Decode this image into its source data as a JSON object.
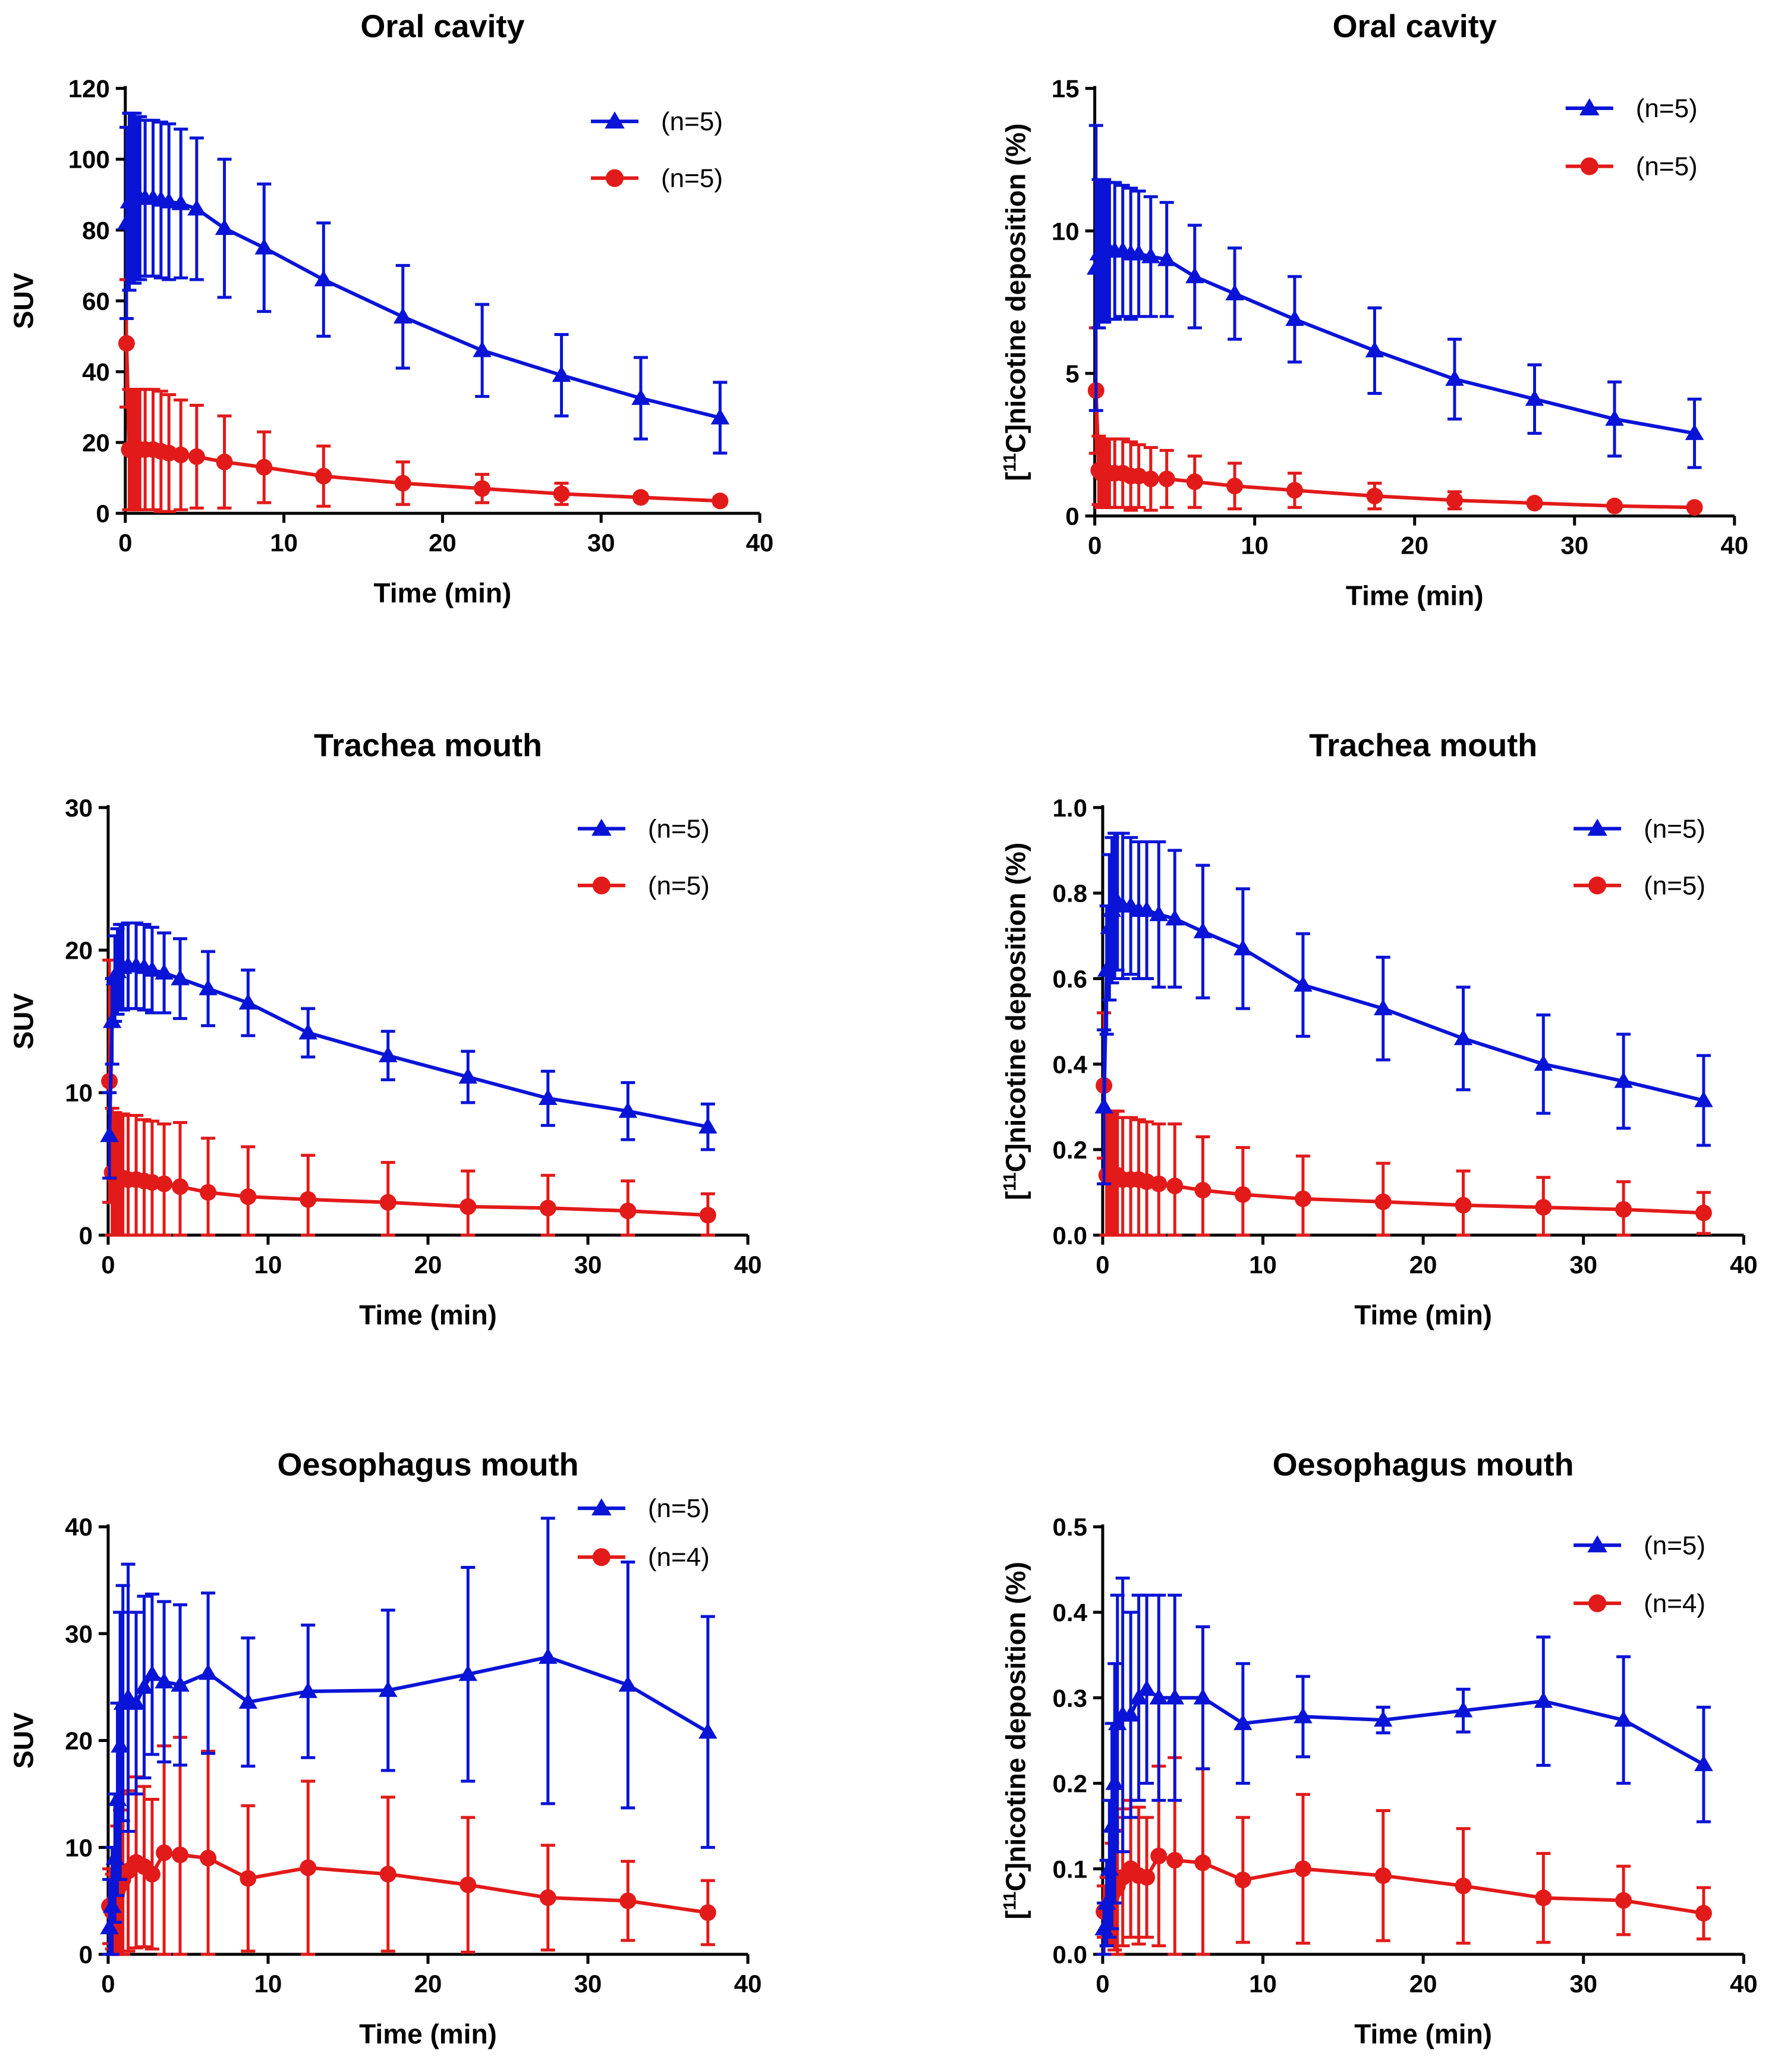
{
  "colors": {
    "blue": "#0a14d6",
    "red": "#e21a1a",
    "axis": "#000000"
  },
  "chart_data": [
    {
      "type": "line",
      "title": "Oral cavity",
      "xlabel": "Time (min)",
      "ylabel": "SUV",
      "ylabel_parts": [
        "",
        "",
        "SUV"
      ],
      "xlim": [
        0,
        40
      ],
      "ylim": [
        0,
        120
      ],
      "x_ticks": [
        0,
        10,
        20,
        30,
        40
      ],
      "y_ticks": [
        0,
        20,
        40,
        60,
        80,
        100,
        120
      ],
      "y_tick_labels": [
        "0",
        "20",
        "40",
        "60",
        "80",
        "100",
        "120"
      ],
      "legend_position": "top-right",
      "x": [
        0.08,
        0.25,
        0.42,
        0.58,
        0.75,
        0.92,
        1.25,
        1.75,
        2.25,
        2.75,
        3.5,
        4.5,
        6.25,
        8.75,
        12.5,
        17.5,
        22.5,
        27.5,
        32.5,
        37.5
      ],
      "series": [
        {
          "name": "(n=5)",
          "marker": "triangle",
          "color": "#0a14d6",
          "values": [
            82,
            88,
            89,
            89,
            89,
            89,
            89,
            89,
            88.5,
            88,
            87.5,
            86,
            80.5,
            75,
            66,
            55.5,
            46,
            39,
            32.5,
            27
          ],
          "errors": [
            27,
            25,
            24,
            24,
            23,
            23,
            22,
            22,
            22,
            22,
            21,
            20,
            19.5,
            18,
            16,
            14.5,
            13,
            11.5,
            11.5,
            10
          ]
        },
        {
          "name": "(n=5)",
          "marker": "circle",
          "color": "#e21a1a",
          "values": [
            48,
            18,
            18,
            18,
            18,
            18,
            18,
            18,
            17.5,
            17,
            16.5,
            16,
            14.5,
            13,
            10.5,
            8.5,
            7,
            5.5,
            4.5,
            3.5
          ],
          "errors": [
            18,
            17,
            17,
            17,
            17,
            17,
            17,
            17,
            17,
            16.5,
            15.5,
            14.5,
            13,
            10,
            8.5,
            6,
            4,
            3,
            1,
            1
          ]
        }
      ]
    },
    {
      "type": "line",
      "title": "Oral cavity",
      "xlabel": "Time (min)",
      "ylabel": "[11C]nicotine deposition (%)",
      "ylabel_parts": [
        "[",
        "11",
        "C]nicotine deposition (%)"
      ],
      "xlim": [
        0,
        40
      ],
      "ylim": [
        0,
        15
      ],
      "x_ticks": [
        0,
        10,
        20,
        30,
        40
      ],
      "y_ticks": [
        0,
        5,
        10,
        15
      ],
      "y_tick_labels": [
        "0",
        "5",
        "10",
        "15"
      ],
      "legend_position": "top-right",
      "x": [
        0.08,
        0.25,
        0.42,
        0.58,
        0.75,
        0.92,
        1.25,
        1.75,
        2.25,
        2.75,
        3.5,
        4.5,
        6.25,
        8.75,
        12.5,
        17.5,
        22.5,
        27.5,
        32.5,
        37.5
      ],
      "series": [
        {
          "name": "(n=5)",
          "marker": "triangle",
          "color": "#0a14d6",
          "values": [
            8.7,
            9.2,
            9.3,
            9.3,
            9.3,
            9.3,
            9.3,
            9.3,
            9.2,
            9.2,
            9.1,
            9,
            8.4,
            7.8,
            6.9,
            5.8,
            4.8,
            4.1,
            3.4,
            2.9
          ],
          "errors": [
            5,
            2.6,
            2.5,
            2.5,
            2.4,
            2.4,
            2.4,
            2.3,
            2.3,
            2.2,
            2.1,
            2,
            1.8,
            1.6,
            1.5,
            1.5,
            1.4,
            1.2,
            1.3,
            1.2
          ]
        },
        {
          "name": "(n=5)",
          "marker": "circle",
          "color": "#e21a1a",
          "values": [
            4.4,
            1.6,
            1.5,
            1.5,
            1.5,
            1.5,
            1.5,
            1.5,
            1.4,
            1.4,
            1.3,
            1.3,
            1.2,
            1.05,
            0.9,
            0.7,
            0.55,
            0.45,
            0.35,
            0.3
          ],
          "errors": [
            2.2,
            1.2,
            1.2,
            1.2,
            1.2,
            1.2,
            1.2,
            1.2,
            1.2,
            1.1,
            1.1,
            1,
            0.9,
            0.8,
            0.6,
            0.45,
            0.3,
            0.1,
            0.1,
            0.1
          ]
        }
      ]
    },
    {
      "type": "line",
      "title": "Trachea mouth",
      "xlabel": "Time (min)",
      "ylabel": "SUV",
      "ylabel_parts": [
        "",
        "",
        "SUV"
      ],
      "xlim": [
        0,
        40
      ],
      "ylim": [
        0,
        30
      ],
      "x_ticks": [
        0,
        10,
        20,
        30,
        40
      ],
      "y_ticks": [
        0,
        10,
        20,
        30
      ],
      "y_tick_labels": [
        "0",
        "10",
        "20",
        "30"
      ],
      "legend_position": "top-right",
      "x": [
        0.08,
        0.25,
        0.42,
        0.58,
        0.75,
        0.92,
        1.25,
        1.75,
        2.25,
        2.75,
        3.5,
        4.5,
        6.25,
        8.75,
        12.5,
        17.5,
        22.5,
        27.5,
        32.5,
        37.5
      ],
      "series": [
        {
          "name": "(n=5)",
          "marker": "triangle",
          "color": "#0a14d6",
          "values": [
            7,
            15,
            18,
            18.5,
            18.8,
            18.8,
            18.9,
            18.9,
            18.8,
            18.6,
            18.4,
            18,
            17.3,
            16.3,
            14.2,
            12.6,
            11.1,
            9.6,
            8.7,
            7.6
          ],
          "errors": [
            3,
            3,
            3,
            3,
            3,
            3,
            3,
            3,
            3,
            3,
            2.8,
            2.8,
            2.6,
            2.3,
            1.7,
            1.7,
            1.8,
            1.9,
            2,
            1.6
          ]
        },
        {
          "name": "(n=5)",
          "marker": "circle",
          "color": "#e21a1a",
          "values": [
            10.8,
            4.4,
            4.1,
            4,
            4,
            4,
            3.9,
            3.9,
            3.8,
            3.7,
            3.6,
            3.4,
            3,
            2.7,
            2.5,
            2.3,
            2,
            1.9,
            1.7,
            1.4
          ],
          "errors": [
            8.5,
            4.5,
            4.5,
            4.5,
            4.5,
            4.5,
            4.5,
            4.5,
            4.3,
            4.3,
            4.2,
            4.5,
            3.8,
            3.5,
            3.1,
            2.8,
            2.5,
            2.3,
            2.1,
            1.5
          ]
        }
      ]
    },
    {
      "type": "line",
      "title": "Trachea mouth",
      "xlabel": "Time (min)",
      "ylabel": "[11C]nicotine deposition (%)",
      "ylabel_parts": [
        "[",
        "11",
        "C]nicotine deposition (%)"
      ],
      "xlim": [
        0,
        40
      ],
      "ylim": [
        0,
        1
      ],
      "x_ticks": [
        0,
        10,
        20,
        30,
        40
      ],
      "y_ticks": [
        0,
        0.2,
        0.4,
        0.6,
        0.8,
        1.0
      ],
      "y_tick_labels": [
        "0.0",
        "0.2",
        "0.4",
        "0.6",
        "0.8",
        "1.0"
      ],
      "legend_position": "top-right",
      "x": [
        0.08,
        0.25,
        0.42,
        0.58,
        0.75,
        0.92,
        1.25,
        1.75,
        2.25,
        2.75,
        3.5,
        4.5,
        6.25,
        8.75,
        12.5,
        17.5,
        22.5,
        27.5,
        32.5,
        37.5
      ],
      "series": [
        {
          "name": "(n=5)",
          "marker": "triangle",
          "color": "#0a14d6",
          "values": [
            0.3,
            0.62,
            0.72,
            0.76,
            0.77,
            0.78,
            0.77,
            0.77,
            0.76,
            0.76,
            0.75,
            0.74,
            0.71,
            0.67,
            0.585,
            0.53,
            0.46,
            0.4,
            0.36,
            0.315
          ],
          "errors": [
            0.18,
            0.15,
            0.17,
            0.17,
            0.17,
            0.16,
            0.17,
            0.16,
            0.16,
            0.16,
            0.17,
            0.16,
            0.155,
            0.14,
            0.12,
            0.12,
            0.12,
            0.115,
            0.11,
            0.105
          ]
        },
        {
          "name": "(n=5)",
          "marker": "circle",
          "color": "#e21a1a",
          "values": [
            0.35,
            0.14,
            0.14,
            0.14,
            0.14,
            0.14,
            0.13,
            0.13,
            0.13,
            0.125,
            0.12,
            0.115,
            0.105,
            0.095,
            0.085,
            0.078,
            0.07,
            0.065,
            0.06,
            0.052
          ],
          "errors": [
            0.17,
            0.15,
            0.15,
            0.15,
            0.15,
            0.15,
            0.145,
            0.145,
            0.14,
            0.14,
            0.14,
            0.145,
            0.125,
            0.11,
            0.1,
            0.09,
            0.08,
            0.07,
            0.065,
            0.048
          ]
        }
      ]
    },
    {
      "type": "line",
      "title": "Oesophagus mouth",
      "xlabel": "Time (min)",
      "ylabel": "SUV",
      "ylabel_parts": [
        "",
        "",
        "SUV"
      ],
      "xlim": [
        0,
        40
      ],
      "ylim": [
        0,
        40
      ],
      "x_ticks": [
        0,
        10,
        20,
        30,
        40
      ],
      "y_ticks": [
        0,
        10,
        20,
        30,
        40
      ],
      "y_tick_labels": [
        "0",
        "10",
        "20",
        "30",
        "40"
      ],
      "legend_position": "top-right",
      "x": [
        0.08,
        0.25,
        0.42,
        0.58,
        0.75,
        0.92,
        1.25,
        1.75,
        2.25,
        2.75,
        3.5,
        4.5,
        6.25,
        8.75,
        12.5,
        17.5,
        22.5,
        27.5,
        32.5,
        37.5
      ],
      "series": [
        {
          "name": "(n=5)",
          "marker": "triangle",
          "color": "#0a14d6",
          "values": [
            2.5,
            4.5,
            9,
            14.5,
            19.5,
            23.5,
            24,
            23.5,
            25,
            26.2,
            25.5,
            25.2,
            26.3,
            23.6,
            24.6,
            24.7,
            26.2,
            27.8,
            25.2,
            20.8
          ],
          "errors": [
            4.5,
            5.5,
            6,
            9,
            12.5,
            11,
            12.5,
            8.5,
            8.5,
            7.5,
            7.5,
            7.5,
            7.5,
            6,
            6.2,
            7.5,
            10,
            13.7,
            11.5,
            10.8
          ]
        },
        {
          "name": "(n=4)",
          "marker": "circle",
          "color": "#e21a1a",
          "values": [
            4.5,
            4,
            5,
            6,
            6.5,
            7,
            7.8,
            8.6,
            8.2,
            7.5,
            9.5,
            9.3,
            9,
            7.1,
            8.1,
            7.5,
            6.5,
            5.3,
            5,
            3.9
          ],
          "errors": [
            3.5,
            3.5,
            5,
            6,
            7,
            8,
            7.5,
            8,
            7.5,
            7,
            10,
            11,
            10,
            6.8,
            8.1,
            7.2,
            6.3,
            4.9,
            3.7,
            3
          ]
        }
      ]
    },
    {
      "type": "line",
      "title": "Oesophagus mouth",
      "xlabel": "Time (min)",
      "ylabel": "[11C]nicotine deposition (%)",
      "ylabel_parts": [
        "[",
        "11",
        "C]nicotine deposition (%)"
      ],
      "xlim": [
        0,
        40
      ],
      "ylim": [
        0,
        0.5
      ],
      "x_ticks": [
        0,
        10,
        20,
        30,
        40
      ],
      "y_ticks": [
        0,
        0.1,
        0.2,
        0.3,
        0.4,
        0.5
      ],
      "y_tick_labels": [
        "0.0",
        "0.1",
        "0.2",
        "0.3",
        "0.4",
        "0.5"
      ],
      "legend_position": "top-right",
      "x": [
        0.08,
        0.25,
        0.42,
        0.58,
        0.75,
        0.92,
        1.25,
        1.75,
        2.25,
        2.75,
        3.5,
        4.5,
        6.25,
        8.75,
        12.5,
        17.5,
        22.5,
        27.5,
        32.5,
        37.5
      ],
      "series": [
        {
          "name": "(n=5)",
          "marker": "triangle",
          "color": "#0a14d6",
          "values": [
            0.03,
            0.06,
            0.1,
            0.15,
            0.2,
            0.27,
            0.28,
            0.28,
            0.3,
            0.31,
            0.3,
            0.3,
            0.3,
            0.27,
            0.278,
            0.274,
            0.285,
            0.296,
            0.274,
            0.222
          ],
          "errors": [
            0.03,
            0.05,
            0.08,
            0.12,
            0.14,
            0.15,
            0.16,
            0.12,
            0.12,
            0.11,
            0.12,
            0.12,
            0.083,
            0.07,
            0.047,
            0.015,
            0.025,
            0.075,
            0.074,
            0.067
          ]
        },
        {
          "name": "(n=4)",
          "marker": "circle",
          "color": "#e21a1a",
          "values": [
            0.05,
            0.05,
            0.06,
            0.07,
            0.075,
            0.08,
            0.09,
            0.1,
            0.092,
            0.09,
            0.115,
            0.11,
            0.107,
            0.087,
            0.1,
            0.092,
            0.08,
            0.066,
            0.063,
            0.048
          ],
          "errors": [
            0.03,
            0.04,
            0.05,
            0.06,
            0.07,
            0.08,
            0.08,
            0.08,
            0.08,
            0.07,
            0.105,
            0.12,
            0.11,
            0.073,
            0.087,
            0.076,
            0.067,
            0.052,
            0.04,
            0.03
          ]
        }
      ]
    }
  ]
}
